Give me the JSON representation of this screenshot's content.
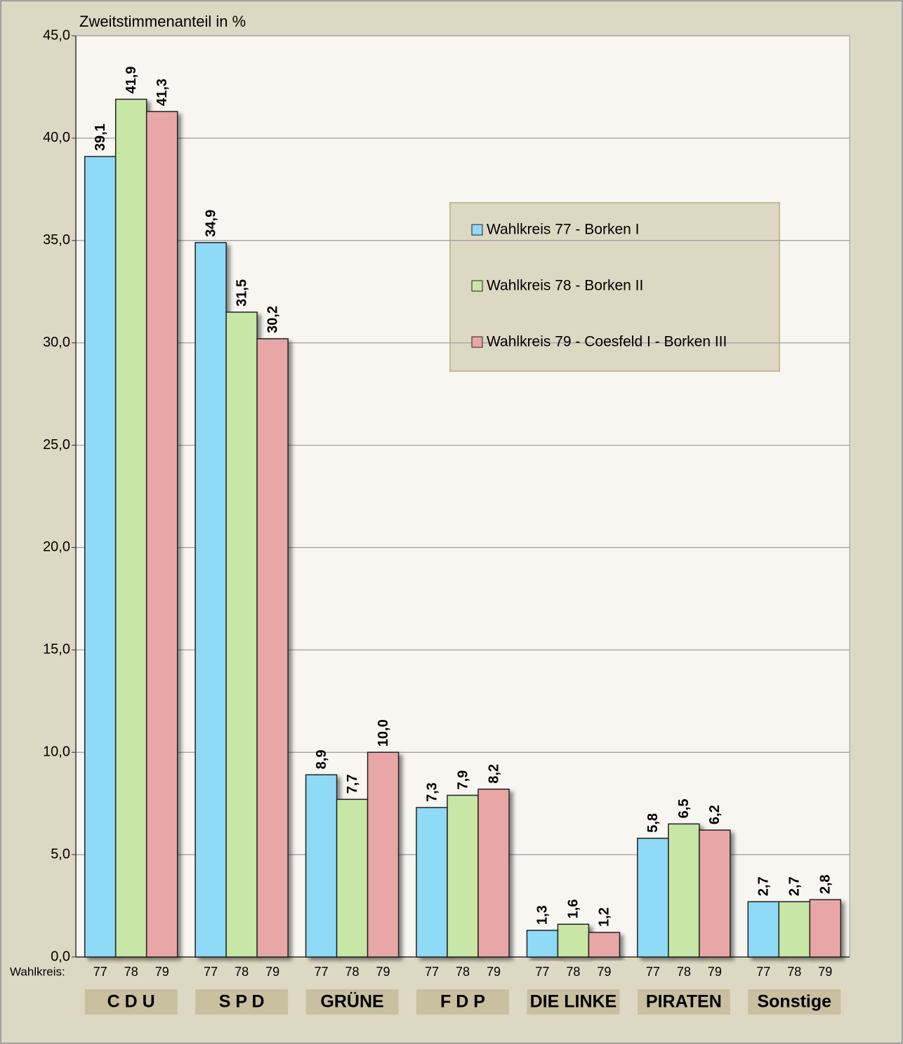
{
  "chart_data": {
    "type": "bar",
    "y_label": "Zweitstimmenanteil in %",
    "x_sublabel_title": "Wahlkreis:",
    "bar_labels": [
      "77",
      "78",
      "79"
    ],
    "categories": [
      "C D U",
      "S P D",
      "GRÜNE",
      "F D P",
      "DIE LINKE",
      "PIRATEN",
      "Sonstige"
    ],
    "series": [
      {
        "name": "Wahlkreis 77 - Borken I",
        "color": "#8fdaf6",
        "values": [
          39.1,
          34.9,
          8.9,
          7.3,
          1.3,
          5.8,
          2.7
        ],
        "value_labels": [
          "39,1",
          "34,9",
          "8,9",
          "7,3",
          "1,3",
          "5,8",
          "2,7"
        ]
      },
      {
        "name": "Wahlkreis 78 - Borken II",
        "color": "#c8e6a6",
        "values": [
          41.9,
          31.5,
          7.7,
          7.9,
          1.6,
          6.5,
          2.7
        ],
        "value_labels": [
          "41,9",
          "31,5",
          "7,7",
          "7,9",
          "1,6",
          "6,5",
          "2,7"
        ]
      },
      {
        "name": "Wahlkreis 79 - Coesfeld I - Borken III",
        "color": "#e9a6a6",
        "values": [
          41.3,
          30.2,
          10.0,
          8.2,
          1.2,
          6.2,
          2.8
        ],
        "value_labels": [
          "41,3",
          "30,2",
          "10,0",
          "8,2",
          "1,2",
          "6,2",
          "2,8"
        ]
      }
    ],
    "ylim": [
      0,
      45
    ],
    "yticks": [
      {
        "value": 0,
        "label": "0,0"
      },
      {
        "value": 5,
        "label": "5,0"
      },
      {
        "value": 10,
        "label": "10,0"
      },
      {
        "value": 15,
        "label": "15,0"
      },
      {
        "value": 20,
        "label": "20,0"
      },
      {
        "value": 25,
        "label": "25,0"
      },
      {
        "value": 30,
        "label": "30,0"
      },
      {
        "value": 35,
        "label": "35,0"
      },
      {
        "value": 40,
        "label": "40,0"
      },
      {
        "value": 45,
        "label": "45,0"
      }
    ],
    "grid": true
  }
}
